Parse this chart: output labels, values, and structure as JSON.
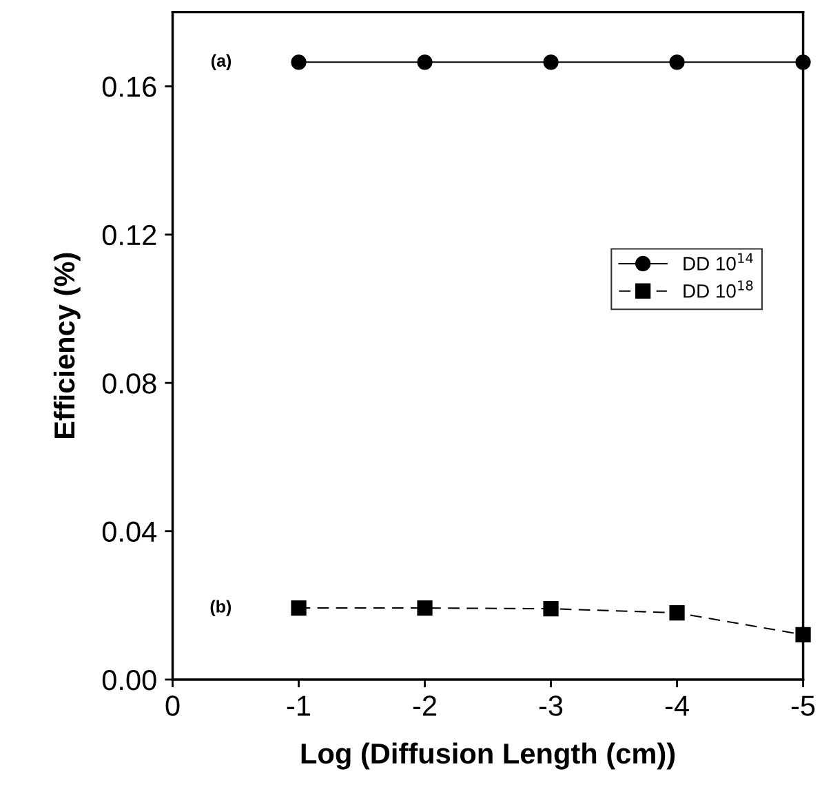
{
  "chart_data": {
    "type": "line",
    "xlabel": "Log (Diffusion Length (cm))",
    "ylabel": "Efficiency (%)",
    "x": [
      -1,
      -2,
      -3,
      -4,
      -5
    ],
    "series": [
      {
        "name": "DD 10$^{14}$",
        "color": "#000000",
        "marker": "circle",
        "line_style": "solid",
        "values": [
          0.1665,
          0.1665,
          0.1665,
          0.1665,
          0.1665
        ]
      },
      {
        "name": "DD 10$^{18}$",
        "color": "#000000",
        "marker": "square",
        "line_style": "dashed",
        "values": [
          0.0193,
          0.0193,
          0.0191,
          0.018,
          0.0121
        ]
      }
    ],
    "xlim": [
      0,
      -5
    ],
    "xticks": [
      0,
      -1,
      -2,
      -3,
      -4,
      -5
    ],
    "ylim": [
      0,
      0.18
    ],
    "yticks": [
      {
        "value": 0,
        "label": "0.00"
      },
      {
        "value": 0.04,
        "label": "0.04"
      },
      {
        "value": 0.08,
        "label": "0.08"
      },
      {
        "value": 0.12,
        "label": "0.12"
      },
      {
        "value": 0.16,
        "label": "0.16"
      }
    ],
    "annotations": [
      "(a)",
      "(b)"
    ],
    "grid": false,
    "legend": "right"
  }
}
